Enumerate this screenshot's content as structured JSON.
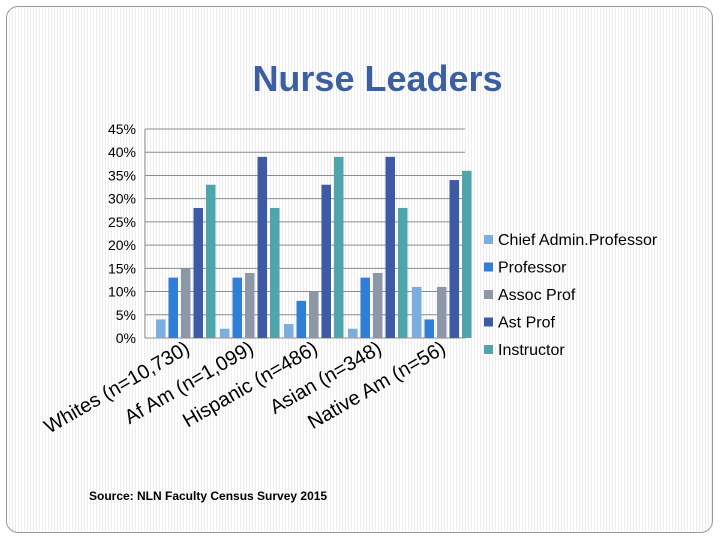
{
  "chart_data": {
    "type": "bar",
    "title": "Nurse Leaders",
    "categories": [
      "Whites (n=10,730)",
      "Af Am (n=1,099)",
      "Hispanic (n=486)",
      "Asian (n=348)",
      "Native Am (n=56)"
    ],
    "series": [
      {
        "name": "Chief Admin.Professor",
        "color": "#7aaede",
        "values": [
          4,
          2,
          3,
          2,
          11
        ]
      },
      {
        "name": "Professor",
        "color": "#2f7fd6",
        "values": [
          13,
          13,
          8,
          13,
          4
        ]
      },
      {
        "name": "Assoc Prof",
        "color": "#8c97a8",
        "values": [
          15,
          14,
          10,
          14,
          11
        ]
      },
      {
        "name": "Ast  Prof",
        "color": "#3d5aa4",
        "values": [
          28,
          39,
          33,
          39,
          34
        ]
      },
      {
        "name": "Instructor",
        "color": "#4ea6ac",
        "values": [
          33,
          28,
          39,
          28,
          36
        ]
      }
    ],
    "yticks": [
      "0%",
      "5%",
      "10%",
      "15%",
      "20%",
      "25%",
      "30%",
      "35%",
      "40%",
      "45%"
    ],
    "ylim": [
      0,
      45
    ],
    "xlabel": "",
    "ylabel": "",
    "grid": true,
    "legend": "right"
  },
  "source": "Source: NLN Faculty Census Survey 2015"
}
